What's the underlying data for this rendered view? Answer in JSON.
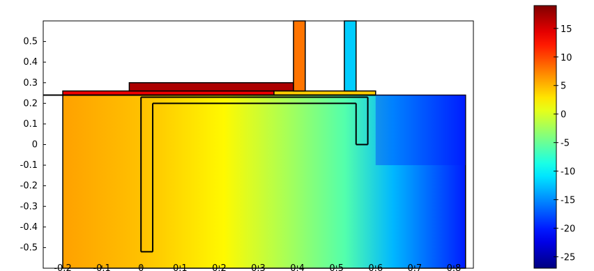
{
  "chart_data": {
    "type": "heatmap",
    "title": "",
    "xlabel": "",
    "ylabel": "",
    "xlim": [
      -0.25,
      0.85
    ],
    "ylim": [
      -0.6,
      0.6
    ],
    "x_ticks": [
      -0.2,
      -0.1,
      0,
      0.1,
      0.2,
      0.3,
      0.4,
      0.5,
      0.6,
      0.7,
      0.8
    ],
    "x_tick_labels": [
      "-0.2",
      "-0.1",
      "0",
      "0.1",
      "0.2",
      "0.3",
      "0.4",
      "0.5",
      "0.6",
      "0.7",
      "0.8"
    ],
    "y_ticks": [
      0.5,
      0.4,
      0.3,
      0.2,
      0.1,
      0,
      -0.1,
      -0.2,
      -0.3,
      -0.4,
      -0.5
    ],
    "y_tick_labels": [
      "0.5",
      "0.4",
      "0.3",
      "0.2",
      "0.1",
      "0",
      "-0.1",
      "-0.2",
      "-0.3",
      "-0.4",
      "-0.5"
    ],
    "colormap": "jet",
    "colorbar": {
      "range": [
        -27,
        19
      ],
      "ticks": [
        15,
        10,
        5,
        0,
        -5,
        -10,
        -15,
        -20,
        -25
      ],
      "tick_labels": [
        "15",
        "10",
        "5",
        "0",
        "-5",
        "-10",
        "-15",
        "-20",
        "-25"
      ]
    },
    "field": {
      "comment_free": true,
      "value_at_left": 6,
      "value_at_x_0_5": -4,
      "value_at_right": -20
    },
    "regions": [
      {
        "name": "main-block",
        "x": [
          -0.2,
          0.83
        ],
        "y": [
          -0.6,
          0.24
        ]
      },
      {
        "name": "top-left-slab",
        "x": [
          -0.2,
          0.4
        ],
        "y": [
          0.24,
          0.26
        ],
        "value": 14
      },
      {
        "name": "top-mid-slab",
        "x": [
          -0.03,
          0.39
        ],
        "y": [
          0.26,
          0.3
        ],
        "value": 17
      },
      {
        "name": "top-right-slab",
        "x": [
          0.34,
          0.6
        ],
        "y": [
          0.24,
          0.26
        ],
        "value": 4
      },
      {
        "name": "vertical-rod-1",
        "x": [
          0.39,
          0.42
        ],
        "y": [
          0.26,
          0.6
        ],
        "value": 8
      },
      {
        "name": "vertical-rod-2",
        "x": [
          0.52,
          0.55
        ],
        "y": [
          0.26,
          0.6
        ],
        "value": -12
      }
    ],
    "outline_lines": [
      {
        "name": "left-hline",
        "x": [
          -0.25,
          0.6
        ],
        "y": [
          0.24,
          0.24
        ]
      },
      {
        "name": "slab-frame",
        "x": [
          0,
          0.58
        ],
        "y": [
          0.23,
          0.23
        ]
      },
      {
        "name": "inner-l-vertical-a",
        "x": [
          0,
          0
        ],
        "y": [
          -0.52,
          0.23
        ]
      },
      {
        "name": "inner-l-vertical-b",
        "x": [
          0.03,
          0.03
        ],
        "y": [
          -0.52,
          0.2
        ]
      },
      {
        "name": "inner-l-horizontal",
        "x": [
          0.03,
          0.55
        ],
        "y": [
          0.2,
          0.2
        ]
      },
      {
        "name": "inner-l-bottom",
        "x": [
          0,
          0.03
        ],
        "y": [
          -0.52,
          -0.52
        ]
      },
      {
        "name": "right-pocket-left",
        "x": [
          0.55,
          0.55
        ],
        "y": [
          0,
          0.2
        ]
      },
      {
        "name": "right-pocket-right",
        "x": [
          0.58,
          0.58
        ],
        "y": [
          0,
          0.23
        ]
      },
      {
        "name": "right-pocket-bottom",
        "x": [
          0.55,
          0.58
        ],
        "y": [
          0,
          0
        ]
      }
    ]
  }
}
